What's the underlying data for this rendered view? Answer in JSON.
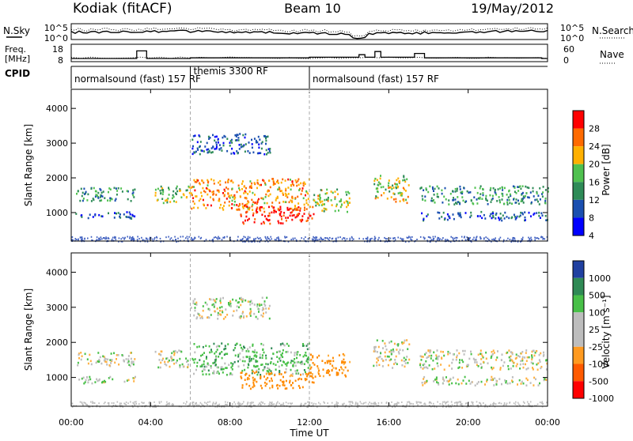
{
  "header": {
    "site": "Kodiak (fitACF)",
    "beam": "Beam 10",
    "date": "19/May/2012"
  },
  "noise_panel": {
    "left_label": "N.Sky",
    "right_label": "N.Search",
    "left_ticks": [
      "10^5",
      "10^0"
    ],
    "right_ticks": [
      "10^5",
      "10^0"
    ]
  },
  "freq_panel": {
    "left_label_line1": "Freq.",
    "left_label_line2": "[MHz]",
    "left_ticks": [
      "18",
      "8"
    ],
    "right_label": "Nave",
    "right_ticks": [
      "60",
      "0"
    ]
  },
  "cpid_panel": {
    "label": "CPID",
    "modes": [
      {
        "text": "normalsound (fast) 157 RF",
        "start_hour": 0,
        "end_hour": 6
      },
      {
        "text": "themis 3300 RF",
        "start_hour": 6,
        "end_hour": 12
      },
      {
        "text": "normalsound (fast) 157 RF",
        "start_hour": 12,
        "end_hour": 24
      }
    ]
  },
  "power_panel": {
    "ylabel": "Slant Range [km]",
    "cb_label": "Power [dB]",
    "cb_ticks": [
      "28",
      "24",
      "20",
      "16",
      "12",
      "8",
      "4"
    ],
    "cb_colors": [
      "#ff0000",
      "#ff6a00",
      "#ffb000",
      "#4fc14f",
      "#2e8b57",
      "#1a4fb0",
      "#0000ff"
    ]
  },
  "velocity_panel": {
    "ylabel": "Slant Range [km]",
    "cb_label": "Velocity [m s⁻¹]",
    "cb_ticks": [
      "1000",
      "500",
      "100",
      "25",
      "-25",
      "-100",
      "-500",
      "-1000"
    ],
    "cb_colors": [
      "#2040a0",
      "#2f8a55",
      "#48c048",
      "#bdbdbd",
      "#bdbdbd",
      "#ff9a20",
      "#ff5a00",
      "#ff0000"
    ]
  },
  "chart_data": {
    "type": "heatmap",
    "xlabel": "Time UT",
    "x_ticks": [
      "00:00",
      "04:00",
      "08:00",
      "12:00",
      "16:00",
      "20:00",
      "00:00"
    ],
    "xlim_hours": [
      0,
      24
    ],
    "ylabel": "Slant Range [km]",
    "y_ticks": [
      "1000",
      "2000",
      "3000",
      "4000"
    ],
    "ylim_km": [
      180,
      4550
    ],
    "power_colorbar": {
      "label": "Power [dB]",
      "range": [
        0,
        30
      ],
      "ticks": [
        4,
        8,
        12,
        16,
        20,
        24,
        28
      ]
    },
    "velocity_colorbar": {
      "label": "Velocity [m s⁻¹]",
      "ticks": [
        -1000,
        -500,
        -100,
        -25,
        25,
        100,
        500,
        1000
      ]
    },
    "echo_regions": [
      {
        "t0": 0.2,
        "t1": 3.2,
        "r0": 1350,
        "r1": 1750,
        "power": 12,
        "velocity": 0
      },
      {
        "t0": 0.2,
        "t1": 3.2,
        "r0": 850,
        "r1": 1050,
        "power": 8,
        "velocity": 0
      },
      {
        "t0": 4.2,
        "t1": 6.0,
        "r0": 1300,
        "r1": 1800,
        "power": 16,
        "velocity": 0
      },
      {
        "t0": 6.0,
        "t1": 12.0,
        "r0": 1100,
        "r1": 2000,
        "power": 22,
        "velocity": 60
      },
      {
        "t0": 8.5,
        "t1": 12.2,
        "r0": 700,
        "r1": 1200,
        "power": 28,
        "velocity": -150
      },
      {
        "t0": 6.0,
        "t1": 10.0,
        "r0": 2700,
        "r1": 3300,
        "power": 8,
        "velocity": 0
      },
      {
        "t0": 12.0,
        "t1": 14.0,
        "r0": 1050,
        "r1": 1700,
        "power": 18,
        "velocity": -150
      },
      {
        "t0": 15.2,
        "t1": 17.0,
        "r0": 1300,
        "r1": 2100,
        "power": 18,
        "velocity": 0
      },
      {
        "t0": 17.5,
        "t1": 24.0,
        "r0": 1250,
        "r1": 1800,
        "power": 12,
        "velocity": 0
      },
      {
        "t0": 17.5,
        "t1": 24.0,
        "r0": 800,
        "r1": 1050,
        "power": 8,
        "velocity": 0
      }
    ],
    "freq_steps_mhz": [
      {
        "t0": 0.0,
        "t1": 3.3,
        "freq": 10.5
      },
      {
        "t0": 3.3,
        "t1": 3.8,
        "freq": 16.5
      },
      {
        "t0": 3.8,
        "t1": 6.0,
        "freq": 10.5
      },
      {
        "t0": 6.0,
        "t1": 12.0,
        "freq": 11.0
      },
      {
        "t0": 12.0,
        "t1": 14.5,
        "freq": 11.5
      },
      {
        "t0": 14.5,
        "t1": 14.8,
        "freq": 13.5
      },
      {
        "t0": 14.8,
        "t1": 15.3,
        "freq": 11.5
      },
      {
        "t0": 15.3,
        "t1": 15.6,
        "freq": 16.0
      },
      {
        "t0": 15.6,
        "t1": 17.3,
        "freq": 11.5
      },
      {
        "t0": 17.3,
        "t1": 17.8,
        "freq": 14.5
      },
      {
        "t0": 17.8,
        "t1": 23.7,
        "freq": 11.0
      },
      {
        "t0": 23.7,
        "t1": 24.0,
        "freq": 10.5
      }
    ]
  }
}
